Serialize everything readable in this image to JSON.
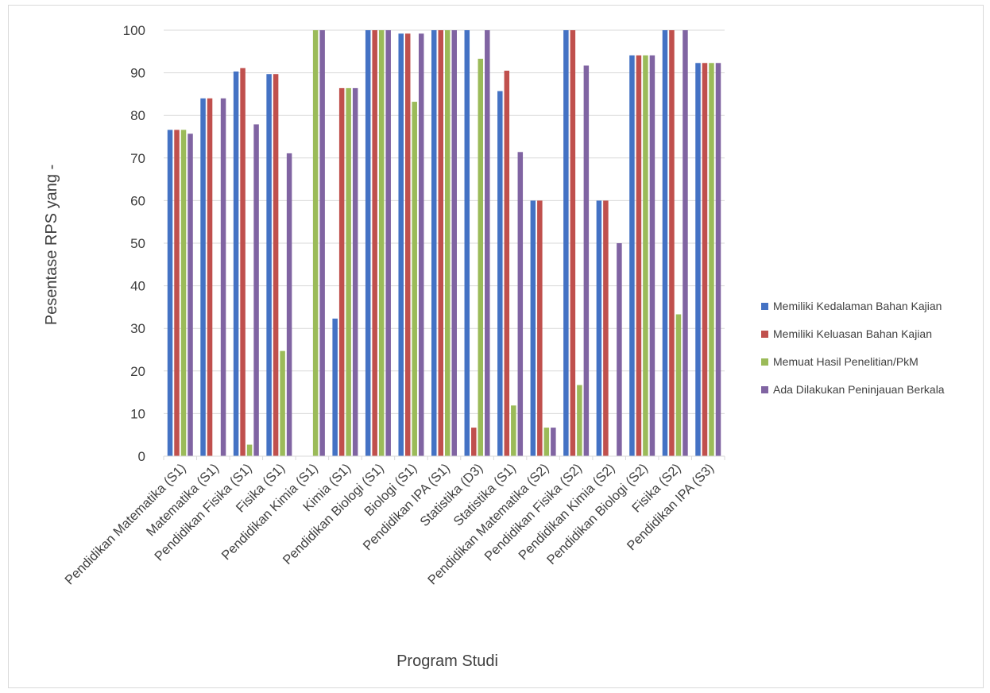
{
  "chart_data": {
    "type": "bar",
    "title": "",
    "xlabel": "Program Studi",
    "ylabel": "Pesentase RPS yang -",
    "ylim": [
      0,
      100
    ],
    "yticks": [
      0,
      10,
      20,
      30,
      40,
      50,
      60,
      70,
      80,
      90,
      100
    ],
    "grid": true,
    "legend_position": "right",
    "categories": [
      "Pendidikan Matematika (S1)",
      "Matematika (S1)",
      "Pendidikan Fisika (S1)",
      "Fisika (S1)",
      "Pendidikan Kimia (S1)",
      "Kimia (S1)",
      "Pendidikan Biologi (S1)",
      "Biologi (S1)",
      "Pendidikan IPA (S1)",
      "Statistika (D3)",
      "Statistika (S1)",
      "Pendidikan Matematika (S2)",
      "Pendidikan Fisika (S2)",
      "Pendidikan Kimia (S2)",
      "Pendidikan Biologi (S2)",
      "Fisika (S2)",
      "Pendidikan IPA (S3)"
    ],
    "series": [
      {
        "name": "Memiliki Kedalaman Bahan Kajian",
        "color": "#4472c4",
        "values": [
          76.6,
          84,
          90.3,
          89.7,
          0,
          32.3,
          100,
          99.2,
          100,
          100,
          85.7,
          60,
          100,
          60,
          94.1,
          100,
          92.3
        ]
      },
      {
        "name": "Memiliki Keluasan Bahan Kajian",
        "color": "#c0504d",
        "values": [
          76.6,
          84,
          91.1,
          89.7,
          0,
          86.4,
          100,
          99.2,
          100,
          6.7,
          90.5,
          60,
          100,
          60,
          94.1,
          100,
          92.3
        ]
      },
      {
        "name": "Memuat Hasil Penelitian/PkM",
        "color": "#9bbb59",
        "values": [
          76.6,
          0,
          2.7,
          24.7,
          100,
          86.4,
          100,
          83.2,
          100,
          93.3,
          11.9,
          6.7,
          16.7,
          0,
          94.1,
          33.3,
          92.3
        ]
      },
      {
        "name": "Ada Dilakukan Peninjauan Berkala",
        "color": "#8064a2",
        "values": [
          75.7,
          84,
          77.9,
          71.1,
          100,
          86.4,
          100,
          99.2,
          100,
          100,
          71.4,
          6.7,
          91.7,
          50,
          94.1,
          100,
          92.3
        ]
      }
    ]
  }
}
